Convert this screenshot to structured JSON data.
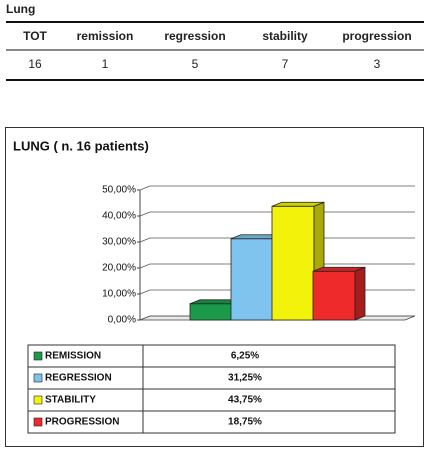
{
  "table": {
    "title": "Lung",
    "header": [
      "TOT",
      "remission",
      "regression",
      "stability",
      "progression"
    ],
    "rows": [
      [
        "16",
        "1",
        "5",
        "7",
        "3"
      ]
    ]
  },
  "chart_data": {
    "type": "bar3d",
    "title": "LUNG ( n. 16 patients)",
    "categories": [
      "REMISSION",
      "REGRESSION",
      "STABILITY",
      "PROGRESSION"
    ],
    "values": [
      6.25,
      31.25,
      43.75,
      18.75
    ],
    "value_labels": [
      "6,25%",
      "31,25%",
      "43,75%",
      "18,75%"
    ],
    "colors": [
      "#1a9a4a",
      "#7fc4ee",
      "#f2f20a",
      "#ee2a2a"
    ],
    "ylim": [
      0,
      50
    ],
    "yticks": [
      {
        "value": 0,
        "label": "0,00%"
      },
      {
        "value": 10,
        "label": "10,00%"
      },
      {
        "value": 20,
        "label": "20,00%"
      },
      {
        "value": 30,
        "label": "30,00%"
      },
      {
        "value": 40,
        "label": "40,00%"
      },
      {
        "value": 50,
        "label": "50,00%"
      }
    ],
    "grid": true
  }
}
